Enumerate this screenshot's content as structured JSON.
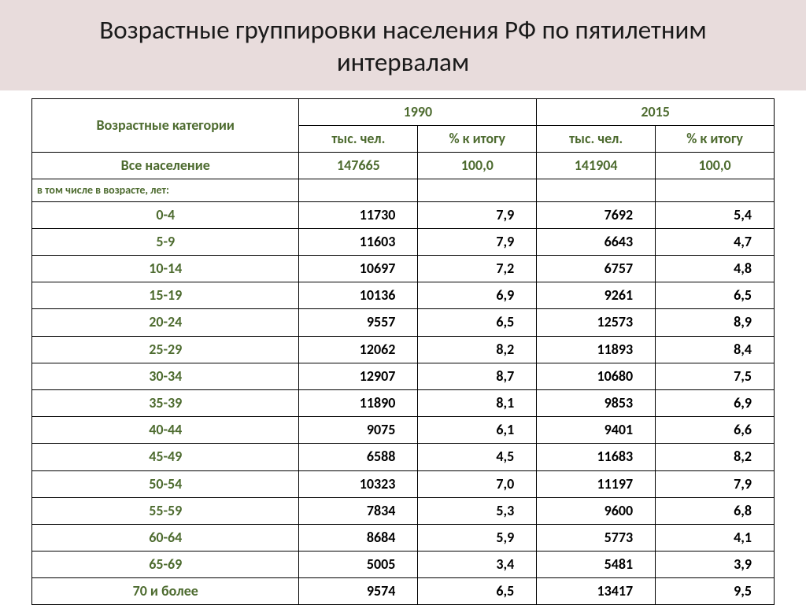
{
  "title": "Возрастные группировки населения РФ по пятилетним интервалам",
  "table": {
    "header": {
      "category_label": "Возрастные категории",
      "year_a": "1990",
      "year_b": "2015",
      "sub_count": "тыс. чел.",
      "sub_pct": "% к итогу"
    },
    "total": {
      "label": "Все население",
      "a_count": "147665",
      "a_pct": "100,0",
      "b_count": "141904",
      "b_pct": "100,0"
    },
    "note": "в том числе в возрасте, лет:",
    "rows": [
      {
        "label": "0-4",
        "a_count": "11730",
        "a_pct": "7,9",
        "b_count": "7692",
        "b_pct": "5,4"
      },
      {
        "label": "5-9",
        "a_count": "11603",
        "a_pct": "7,9",
        "b_count": "6643",
        "b_pct": "4,7"
      },
      {
        "label": "10-14",
        "a_count": "10697",
        "a_pct": "7,2",
        "b_count": "6757",
        "b_pct": "4,8"
      },
      {
        "label": "15-19",
        "a_count": "10136",
        "a_pct": "6,9",
        "b_count": "9261",
        "b_pct": "6,5"
      },
      {
        "label": "20-24",
        "a_count": "9557",
        "a_pct": "6,5",
        "b_count": "12573",
        "b_pct": "8,9"
      },
      {
        "label": "25-29",
        "a_count": "12062",
        "a_pct": "8,2",
        "b_count": "11893",
        "b_pct": "8,4"
      },
      {
        "label": "30-34",
        "a_count": "12907",
        "a_pct": "8,7",
        "b_count": "10680",
        "b_pct": "7,5"
      },
      {
        "label": "35-39",
        "a_count": "11890",
        "a_pct": "8,1",
        "b_count": "9853",
        "b_pct": "6,9"
      },
      {
        "label": "40-44",
        "a_count": "9075",
        "a_pct": "6,1",
        "b_count": "9401",
        "b_pct": "6,6"
      },
      {
        "label": "45-49",
        "a_count": "6588",
        "a_pct": "4,5",
        "b_count": "11683",
        "b_pct": "8,2"
      },
      {
        "label": "50-54",
        "a_count": "10323",
        "a_pct": "7,0",
        "b_count": "11197",
        "b_pct": "7,9"
      },
      {
        "label": "55-59",
        "a_count": "7834",
        "a_pct": "5,3",
        "b_count": "9600",
        "b_pct": "6,8"
      },
      {
        "label": "60-64",
        "a_count": "8684",
        "a_pct": "5,9",
        "b_count": "5773",
        "b_pct": "4,1"
      },
      {
        "label": "65-69",
        "a_count": "5005",
        "a_pct": "3,4",
        "b_count": "5481",
        "b_pct": "3,9"
      },
      {
        "label": "70 и более",
        "a_count": "9574",
        "a_pct": "6,5",
        "b_count": "13417",
        "b_pct": "9,5"
      }
    ]
  },
  "style": {
    "title_bg": "#e8dcdc",
    "accent_text": "#4d6b2f",
    "border_color": "#000000",
    "body_text": "#000000"
  }
}
